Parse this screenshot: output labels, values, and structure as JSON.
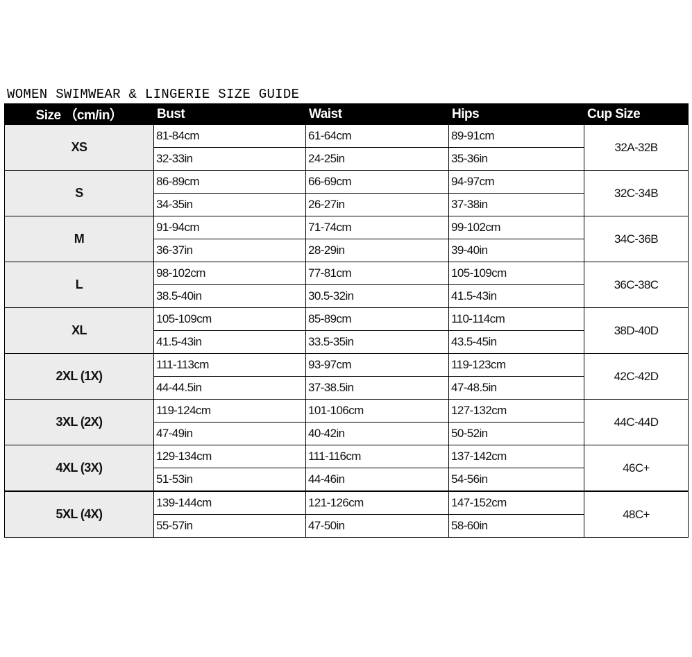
{
  "title": "WOMEN SWIMWEAR & LINGERIE SIZE GUIDE",
  "headers": [
    "Size （cm/in）",
    "Bust",
    "Waist",
    "Hips",
    "Cup Size"
  ],
  "rows": [
    {
      "size": "XS",
      "bust_cm": "81-84cm",
      "bust_in": "32-33in",
      "waist_cm": "61-64cm",
      "waist_in": "24-25in",
      "hips_cm": "89-91cm",
      "hips_in": "35-36in",
      "cup": "32A-32B"
    },
    {
      "size": "S",
      "bust_cm": "86-89cm",
      "bust_in": "34-35in",
      "waist_cm": "66-69cm",
      "waist_in": "26-27in",
      "hips_cm": "94-97cm",
      "hips_in": "37-38in",
      "cup": "32C-34B"
    },
    {
      "size": "M",
      "bust_cm": "91-94cm",
      "bust_in": "36-37in",
      "waist_cm": "71-74cm",
      "waist_in": "28-29in",
      "hips_cm": "99-102cm",
      "hips_in": "39-40in",
      "cup": "34C-36B"
    },
    {
      "size": "L",
      "bust_cm": "98-102cm",
      "bust_in": "38.5-40in",
      "waist_cm": "77-81cm",
      "waist_in": "30.5-32in",
      "hips_cm": "105-109cm",
      "hips_in": "41.5-43in",
      "cup": "36C-38C"
    },
    {
      "size": "XL",
      "bust_cm": "105-109cm",
      "bust_in": "41.5-43in",
      "waist_cm": "85-89cm",
      "waist_in": "33.5-35in",
      "hips_cm": "110-114cm",
      "hips_in": "43.5-45in",
      "cup": "38D-40D"
    },
    {
      "size": "2XL (1X)",
      "bust_cm": "111-113cm",
      "bust_in": "44-44.5in",
      "waist_cm": "93-97cm",
      "waist_in": "37-38.5in",
      "hips_cm": "119-123cm",
      "hips_in": "47-48.5in",
      "cup": "42C-42D"
    },
    {
      "size": "3XL (2X)",
      "bust_cm": "119-124cm",
      "bust_in": "47-49in",
      "waist_cm": "101-106cm",
      "waist_in": "40-42in",
      "hips_cm": "127-132cm",
      "hips_in": "50-52in",
      "cup": "44C-44D"
    },
    {
      "size": "4XL (3X)",
      "bust_cm": "129-134cm",
      "bust_in": "51-53in",
      "waist_cm": "111-116cm",
      "waist_in": "44-46in",
      "hips_cm": "137-142cm",
      "hips_in": "54-56in",
      "cup": "46C+"
    },
    {
      "size": "5XL (4X)",
      "bust_cm": "139-144cm",
      "bust_in": "55-57in",
      "waist_cm": "121-126cm",
      "waist_in": "47-50in",
      "hips_cm": "147-152cm",
      "hips_in": "58-60in",
      "cup": "48C+"
    }
  ]
}
